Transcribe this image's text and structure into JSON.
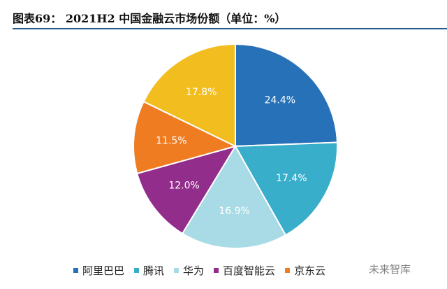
{
  "title": "图表69：  2021H2 中国金融云市场份额（单位：%）",
  "watermark": "未来智库",
  "chart_data": {
    "type": "pie",
    "title": "2021H2 中国金融云市场份额（单位：%）",
    "unit": "%",
    "legend_position": "bottom",
    "slices": [
      {
        "label": "阿里巴巴",
        "value": 24.4,
        "display": "24.4%",
        "color": "#2771b8"
      },
      {
        "label": "腾讯",
        "value": 17.4,
        "display": "17.4%",
        "color": "#38aecb"
      },
      {
        "label": "华为",
        "value": 16.9,
        "display": "16.9%",
        "color": "#a9dbe6"
      },
      {
        "label": "百度智能云",
        "value": 12.0,
        "display": "12.0%",
        "color": "#922d8c"
      },
      {
        "label": "京东云",
        "value": 11.5,
        "display": "11.5%",
        "color": "#f07c22"
      },
      {
        "label": "",
        "value": 17.8,
        "display": "17.8%",
        "color": "#f2bd1f"
      }
    ]
  }
}
